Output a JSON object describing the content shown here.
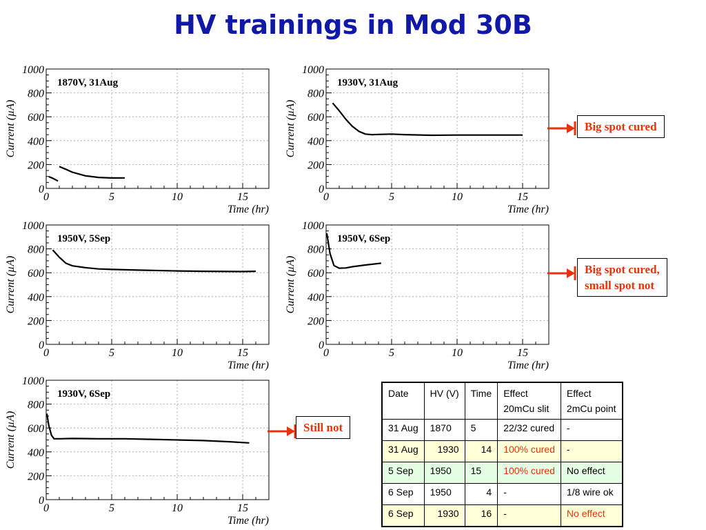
{
  "title": "HV trainings in Mod 30B",
  "chart_data": [
    {
      "type": "line",
      "label": "1870V,  31Aug",
      "xlabel": "Time (hr)",
      "ylabel": "Current (µA)",
      "xlim": [
        0,
        17
      ],
      "ylim": [
        0,
        1000
      ],
      "xticks": [
        "0",
        "5",
        "10",
        "15"
      ],
      "yticks": [
        "0",
        "200",
        "400",
        "600",
        "800",
        "1000"
      ],
      "series": [
        {
          "x": [
            0.2,
            0.5,
            0.9
          ],
          "y": [
            98,
            85,
            62
          ]
        },
        {
          "x": [
            1,
            1.5,
            2,
            3,
            4,
            5,
            6
          ],
          "y": [
            183,
            160,
            135,
            105,
            92,
            87,
            88
          ]
        }
      ]
    },
    {
      "type": "line",
      "label": "1930V,  31Aug",
      "xlabel": "Time (hr)",
      "ylabel": "Current (µA)",
      "xlim": [
        0,
        17
      ],
      "ylim": [
        0,
        1000
      ],
      "xticks": [
        "0",
        "5",
        "10",
        "15"
      ],
      "yticks": [
        "0",
        "200",
        "400",
        "600",
        "800",
        "1000"
      ],
      "series": [
        {
          "x": [
            0.5,
            1,
            1.5,
            2,
            2.5,
            3,
            3.5,
            4,
            5,
            6,
            8,
            10,
            12,
            15
          ],
          "y": [
            715,
            650,
            580,
            520,
            478,
            455,
            450,
            452,
            455,
            450,
            445,
            447,
            447,
            447
          ]
        }
      ]
    },
    {
      "type": "line",
      "label": "1950V,   5Sep",
      "xlabel": "Time (hr)",
      "ylabel": "Current (µA)",
      "xlim": [
        0,
        17
      ],
      "ylim": [
        0,
        1000
      ],
      "xticks": [
        "0",
        "5",
        "10",
        "15"
      ],
      "yticks": [
        "0",
        "200",
        "400",
        "600",
        "800",
        "1000"
      ],
      "series": [
        {
          "x": [
            0.5,
            1,
            1.5,
            2,
            3,
            4,
            5,
            7,
            10,
            12,
            15,
            16
          ],
          "y": [
            790,
            730,
            680,
            658,
            642,
            632,
            628,
            622,
            615,
            612,
            610,
            612
          ]
        }
      ]
    },
    {
      "type": "line",
      "label": "1950V,  6Sep",
      "xlabel": "Time (hr)",
      "ylabel": "Current (µA)",
      "xlim": [
        0,
        17
      ],
      "ylim": [
        0,
        1000
      ],
      "xticks": [
        "0",
        "5",
        "10",
        "15"
      ],
      "yticks": [
        "0",
        "200",
        "400",
        "600",
        "800",
        "1000"
      ],
      "series": [
        {
          "x": [
            0.05,
            0.3,
            0.6,
            1,
            1.5,
            2,
            3,
            4.2
          ],
          "y": [
            930,
            760,
            660,
            638,
            640,
            650,
            665,
            680
          ]
        }
      ]
    },
    {
      "type": "line",
      "label": "1930V,  6Sep",
      "xlabel": "Time (hr)",
      "ylabel": "Current (µA)",
      "xlim": [
        0,
        17
      ],
      "ylim": [
        0,
        1000
      ],
      "xticks": [
        "0",
        "5",
        "10",
        "15"
      ],
      "yticks": [
        "0",
        "200",
        "400",
        "600",
        "800",
        "1000"
      ],
      "series": [
        {
          "x": [
            0.05,
            0.2,
            0.4,
            0.6,
            1,
            2,
            4,
            6,
            8,
            10,
            12,
            14,
            15.5
          ],
          "y": [
            720,
            620,
            540,
            510,
            510,
            512,
            510,
            510,
            505,
            500,
            495,
            485,
            475
          ]
        }
      ]
    }
  ],
  "notes": {
    "n1": "Big spot cured",
    "n2a": "Big spot cured,",
    "n2b": "small spot not",
    "n3": "Still not"
  },
  "colors": {
    "title": "#1018a8",
    "note": "#e8320c",
    "row_yellow": "#ffffd8",
    "row_green": "#e4ffe4"
  },
  "table": {
    "headers": {
      "date": "Date",
      "hv": "HV (V)",
      "time": "Time",
      "e1a": "Effect",
      "e1b": "20mCu slit",
      "e2a": "Effect",
      "e2b": "2mCu point"
    },
    "rows": [
      {
        "date": "31 Aug",
        "hv": "1870",
        "time": "5",
        "e1": "22/32 cured",
        "e2": "-"
      },
      {
        "date": "31 Aug",
        "hv": "1930",
        "time": "14",
        "e1": "100% cured",
        "e2": "-"
      },
      {
        "date": "5 Sep",
        "hv": "1950",
        "time": "15",
        "e1": "100% cured",
        "e2": "No effect"
      },
      {
        "date": "6 Sep",
        "hv": "1950",
        "time": "4",
        "e1": "-",
        "e2": "1/8 wire ok"
      },
      {
        "date": "6 Sep",
        "hv": "1930",
        "time": "16",
        "e1": "-",
        "e2": "No effect"
      }
    ]
  }
}
